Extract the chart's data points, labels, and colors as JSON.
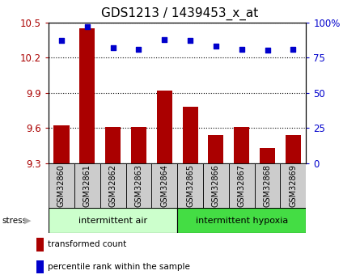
{
  "title": "GDS1213 / 1439453_x_at",
  "samples": [
    "GSM32860",
    "GSM32861",
    "GSM32862",
    "GSM32863",
    "GSM32864",
    "GSM32865",
    "GSM32866",
    "GSM32867",
    "GSM32868",
    "GSM32869"
  ],
  "bar_values": [
    9.62,
    10.45,
    9.61,
    9.61,
    9.92,
    9.78,
    9.54,
    9.61,
    9.43,
    9.54
  ],
  "percentile_values": [
    87,
    97,
    82,
    81,
    88,
    87,
    83,
    81,
    80,
    81
  ],
  "ylim_left": [
    9.3,
    10.5
  ],
  "ylim_right": [
    0,
    100
  ],
  "yticks_left": [
    9.3,
    9.6,
    9.9,
    10.2,
    10.5
  ],
  "yticks_right": [
    0,
    25,
    50,
    75,
    100
  ],
  "ytick_labels_right": [
    "0",
    "25",
    "50",
    "75",
    "100%"
  ],
  "bar_color": "#aa0000",
  "scatter_color": "#0000cc",
  "group1_label": "intermittent air",
  "group2_label": "intermittent hypoxia",
  "group1_color": "#ccffcc",
  "group2_color": "#44dd44",
  "group1_count": 5,
  "group2_count": 5,
  "stress_label": "stress",
  "legend_bar_label": "transformed count",
  "legend_scatter_label": "percentile rank within the sample",
  "sample_bg_color": "#cccccc",
  "title_fontsize": 11,
  "tick_fontsize": 8.5,
  "label_fontsize": 7,
  "group_fontsize": 8
}
